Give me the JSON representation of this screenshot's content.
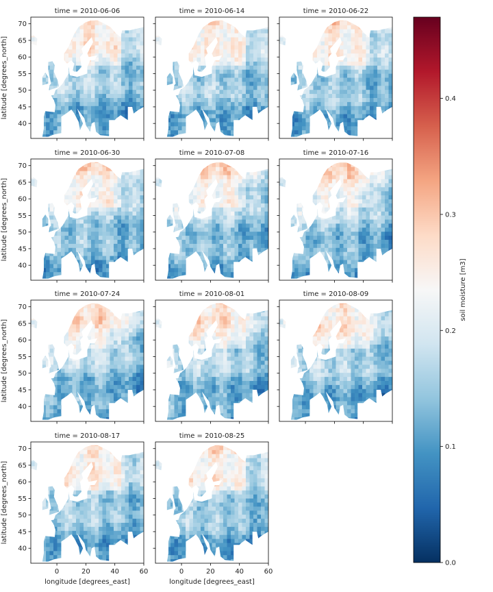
{
  "chart_data": {
    "type": "heatmap",
    "figure_kind": "faceted map grid",
    "panels": [
      {
        "title": "time = 2010-06-06"
      },
      {
        "title": "time = 2010-06-14"
      },
      {
        "title": "time = 2010-06-22"
      },
      {
        "title": "time = 2010-06-30"
      },
      {
        "title": "time = 2010-07-08"
      },
      {
        "title": "time = 2010-07-16"
      },
      {
        "title": "time = 2010-07-24"
      },
      {
        "title": "time = 2010-08-01"
      },
      {
        "title": "time = 2010-08-09"
      },
      {
        "title": "time = 2010-08-17"
      },
      {
        "title": "time = 2010-08-25"
      }
    ],
    "xlabel": "longitude [degrees_east]",
    "ylabel": "latitude [degrees_north]",
    "x_ticks": [
      "0",
      "20",
      "40",
      "60"
    ],
    "y_ticks": [
      "40",
      "45",
      "50",
      "55",
      "60",
      "65",
      "70"
    ],
    "xlim": [
      -18,
      60
    ],
    "ylim": [
      35.5,
      72
    ],
    "colorbar": {
      "label": "soil moisture [m3]",
      "ticks": [
        "0.0",
        "0.1",
        "0.2",
        "0.3",
        "0.4"
      ],
      "range": [
        0,
        0.47
      ],
      "colormap": "RdBu_r",
      "colors": [
        "#053061",
        "#2166ac",
        "#4393c3",
        "#92c5de",
        "#d1e5f0",
        "#f7f7f7",
        "#fddbc7",
        "#f4a582",
        "#d6604d",
        "#b2182b",
        "#67001f"
      ]
    }
  }
}
